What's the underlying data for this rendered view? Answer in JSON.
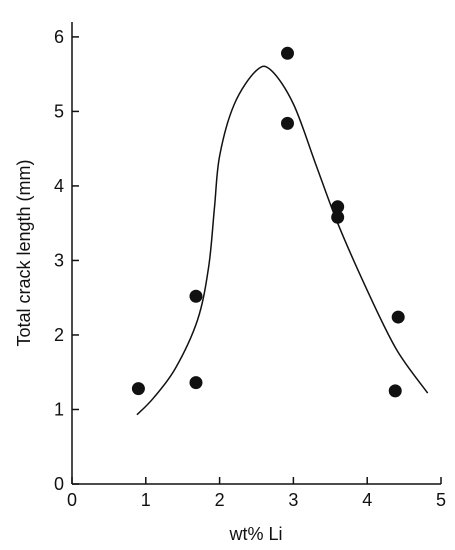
{
  "chart_data": {
    "type": "scatter",
    "title": "",
    "xlabel": "wt% Li",
    "ylabel": "Total crack length (mm)",
    "xlim": [
      0,
      5
    ],
    "ylim": [
      0,
      6.2
    ],
    "x_ticks": [
      0,
      1,
      2,
      3,
      4,
      5
    ],
    "y_ticks": [
      0,
      1,
      2,
      3,
      4,
      5,
      6
    ],
    "grid": false,
    "legend": "none",
    "colors": {
      "axis": "#111111",
      "points": "#111111",
      "curve": "#111111"
    },
    "series": [
      {
        "type": "scatter",
        "points": [
          {
            "x": 0.9,
            "y": 1.28
          },
          {
            "x": 1.68,
            "y": 2.52
          },
          {
            "x": 1.68,
            "y": 1.36
          },
          {
            "x": 2.92,
            "y": 5.78
          },
          {
            "x": 2.92,
            "y": 4.84
          },
          {
            "x": 3.6,
            "y": 3.72
          },
          {
            "x": 3.6,
            "y": 3.58
          },
          {
            "x": 4.42,
            "y": 2.24
          },
          {
            "x": 4.38,
            "y": 1.25
          }
        ]
      },
      {
        "type": "line",
        "smooth": true,
        "points": [
          {
            "x": 0.88,
            "y": 0.93
          },
          {
            "x": 1.1,
            "y": 1.15
          },
          {
            "x": 1.4,
            "y": 1.55
          },
          {
            "x": 1.7,
            "y": 2.2
          },
          {
            "x": 1.85,
            "y": 2.9
          },
          {
            "x": 1.93,
            "y": 3.7
          },
          {
            "x": 2.0,
            "y": 4.4
          },
          {
            "x": 2.2,
            "y": 5.1
          },
          {
            "x": 2.5,
            "y": 5.55
          },
          {
            "x": 2.7,
            "y": 5.55
          },
          {
            "x": 3.0,
            "y": 5.1
          },
          {
            "x": 3.3,
            "y": 4.3
          },
          {
            "x": 3.6,
            "y": 3.5
          },
          {
            "x": 4.0,
            "y": 2.6
          },
          {
            "x": 4.4,
            "y": 1.8
          },
          {
            "x": 4.82,
            "y": 1.22
          }
        ]
      }
    ]
  }
}
